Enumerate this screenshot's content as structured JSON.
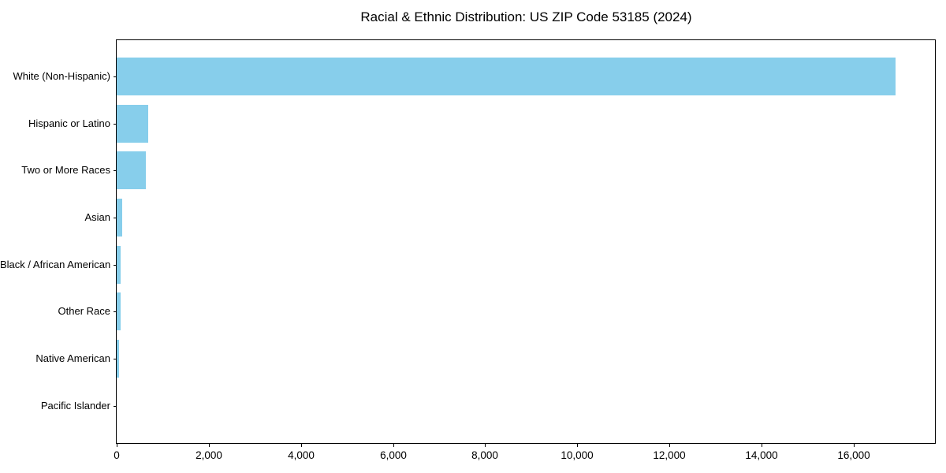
{
  "title": "Racial & Ethnic Distribution: US ZIP Code 53185 (2024)",
  "colors": {
    "bar": "#87CEEB",
    "axis": "#000000",
    "text": "#000000",
    "background": "#FFFFFF"
  },
  "chart_data": {
    "type": "bar",
    "orientation": "horizontal",
    "title": "Racial & Ethnic Distribution: US ZIP Code 53185 (2024)",
    "categories": [
      "White (Non-Hispanic)",
      "Hispanic or Latino",
      "Two or More Races",
      "Asian",
      "Black / African American",
      "Other Race",
      "Native American",
      "Pacific Islander"
    ],
    "values": [
      16900,
      680,
      625,
      125,
      90,
      80,
      50,
      0
    ],
    "xlabel": "",
    "ylabel": "",
    "xlim": [
      0,
      17780
    ],
    "x_ticks": [
      0,
      2000,
      4000,
      6000,
      8000,
      10000,
      12000,
      14000,
      16000
    ],
    "x_tick_labels": [
      "0",
      "2,000",
      "4,000",
      "6,000",
      "8,000",
      "10,000",
      "12,000",
      "14,000",
      "16,000"
    ],
    "bar_color": "#87CEEB",
    "grid": false,
    "legend": null
  }
}
